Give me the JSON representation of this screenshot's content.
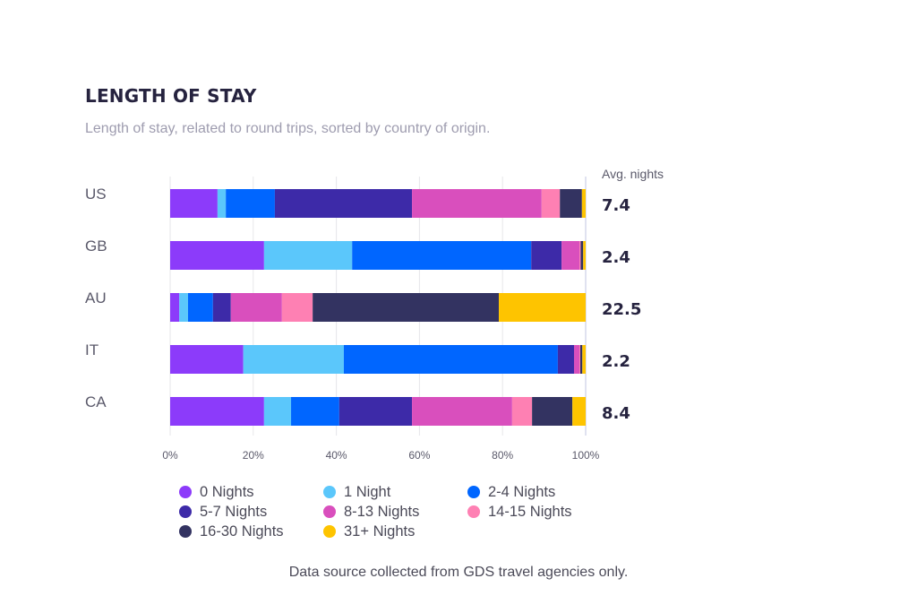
{
  "chart_data": {
    "type": "bar",
    "orientation": "horizontal",
    "stacked": true,
    "normalized": true,
    "title": "LENGTH OF STAY",
    "subtitle": "Length of stay, related to round trips, sorted by country of origin.",
    "xlabel": "",
    "ylabel": "",
    "xlim": [
      0,
      100
    ],
    "x_ticks": [
      "0%",
      "20%",
      "40%",
      "60%",
      "80%",
      "100%"
    ],
    "x_tick_values": [
      0,
      20,
      40,
      60,
      80,
      100
    ],
    "grid": true,
    "categories": [
      "US",
      "GB",
      "AU",
      "IT",
      "CA"
    ],
    "series": [
      {
        "name": "0 Nights",
        "color": "#8c3bfa",
        "values": [
          11.4,
          22.6,
          2.2,
          17.6,
          22.6
        ]
      },
      {
        "name": "1 Night",
        "color": "#5bc7fb",
        "values": [
          2.0,
          21.2,
          2.1,
          24.2,
          6.5
        ]
      },
      {
        "name": "2-4 Nights",
        "color": "#0066ff",
        "values": [
          11.8,
          43.1,
          6.0,
          51.5,
          11.6
        ]
      },
      {
        "name": "5-7 Nights",
        "color": "#3d2aa8",
        "values": [
          33.0,
          7.3,
          4.3,
          3.9,
          17.5
        ]
      },
      {
        "name": "8-13 Nights",
        "color": "#d94fbd",
        "values": [
          31.2,
          4.3,
          12.3,
          1.3,
          24.1
        ]
      },
      {
        "name": "14-15 Nights",
        "color": "#fe80b3",
        "values": [
          4.4,
          0.3,
          7.4,
          0.2,
          4.8
        ]
      },
      {
        "name": "16-30 Nights",
        "color": "#333361",
        "values": [
          5.3,
          0.6,
          44.8,
          0.5,
          9.7
        ]
      },
      {
        "name": "31+ Nights",
        "color": "#fec400",
        "values": [
          0.9,
          0.6,
          20.9,
          0.8,
          3.2
        ]
      }
    ],
    "annotations": {
      "header": "Avg. nights",
      "values": [
        "7.4",
        "2.4",
        "22.5",
        "2.2",
        "8.4"
      ]
    },
    "legend_position": "bottom"
  },
  "footer": "Data source collected from GDS travel agencies only."
}
